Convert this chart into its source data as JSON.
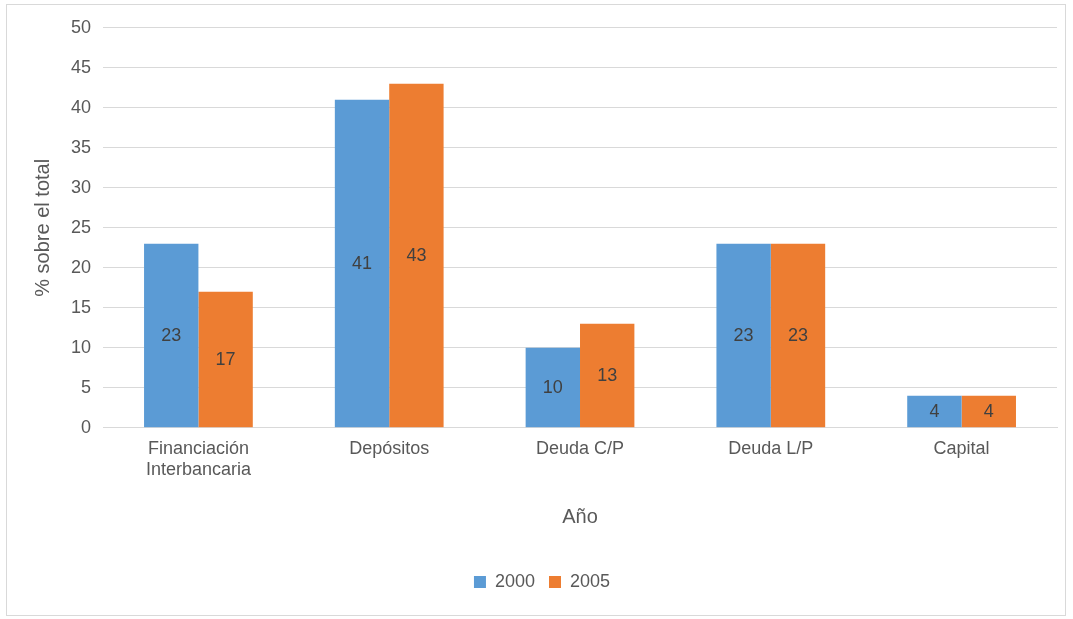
{
  "chart_data": {
    "type": "bar",
    "xlabel": "Año",
    "ylabel": "% sobre el total",
    "categories": [
      "Financiación Interbancaria",
      "Depósitos",
      "Deuda C/P",
      "Deuda L/P",
      "Capital"
    ],
    "series": [
      {
        "name": "2000",
        "color": "#5b9bd5",
        "values": [
          23,
          41,
          10,
          23,
          4
        ]
      },
      {
        "name": "2005",
        "color": "#ed7d31",
        "values": [
          17,
          43,
          13,
          23,
          4
        ]
      }
    ],
    "ylim": [
      0,
      50
    ],
    "yticks": [
      0,
      5,
      10,
      15,
      20,
      25,
      30,
      35,
      40,
      45,
      50
    ],
    "grid": "y",
    "legend": "bottom",
    "data_labels": true
  }
}
